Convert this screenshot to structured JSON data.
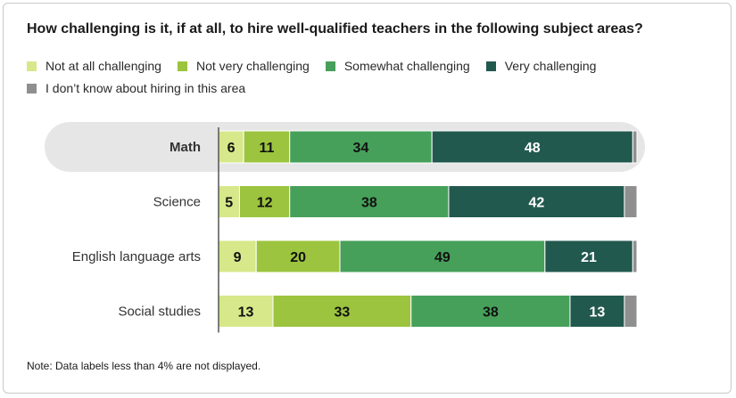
{
  "chart_data": {
    "type": "bar",
    "orientation": "horizontal",
    "stacked": true,
    "title": "How challenging is it, if at all, to hire well-qualified teachers in the following subject areas?",
    "categories": [
      "Math",
      "Science",
      "English language arts",
      "Social studies"
    ],
    "highlighted_category": "Math",
    "xlim": [
      0,
      100
    ],
    "series": [
      {
        "name": "Not at all challenging",
        "color": "#d6e88a",
        "label_color": "#111111",
        "values": [
          6,
          5,
          9,
          13
        ]
      },
      {
        "name": "Not very challenging",
        "color": "#9cc43f",
        "label_color": "#111111",
        "values": [
          11,
          12,
          20,
          33
        ]
      },
      {
        "name": "Somewhat challenging",
        "color": "#46a05a",
        "label_color": "#111111",
        "values": [
          34,
          38,
          49,
          38
        ]
      },
      {
        "name": "Very challenging",
        "color": "#22594f",
        "label_color": "#ffffff",
        "values": [
          48,
          42,
          21,
          13
        ]
      },
      {
        "name": "I don’t know about hiring in this area",
        "color": "#8f8f8f",
        "label_color": "#ffffff",
        "values": [
          1,
          3,
          1,
          3
        ]
      }
    ],
    "data_labels": [
      [
        "6",
        "11",
        "34",
        "48",
        ""
      ],
      [
        "5",
        "12",
        "38",
        "42",
        ""
      ],
      [
        "9",
        "20",
        "49",
        "21",
        ""
      ],
      [
        "13",
        "33",
        "38",
        "13",
        ""
      ]
    ],
    "legend_position": "top",
    "grid": false
  },
  "note": "Note: Data labels less than 4% are not displayed."
}
